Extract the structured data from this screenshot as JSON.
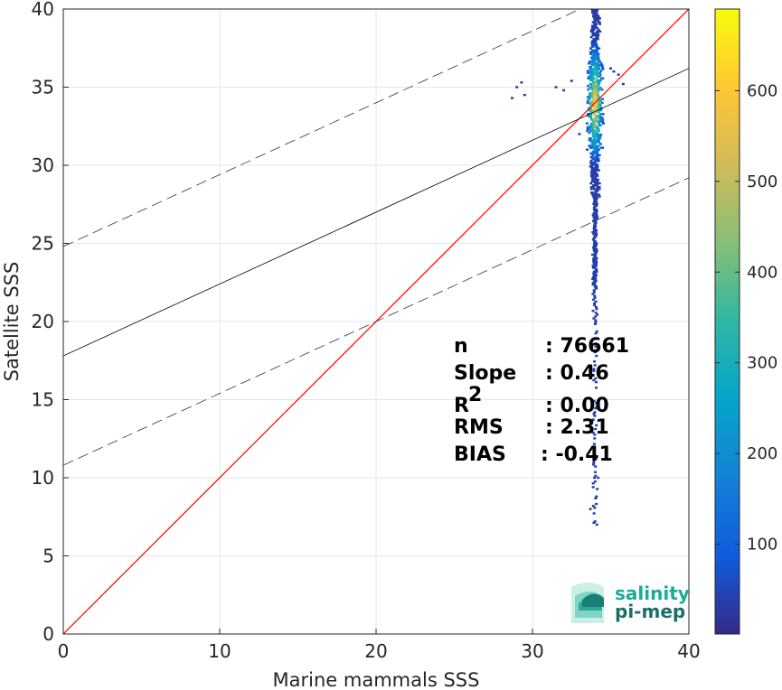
{
  "chart_data": {
    "type": "scatter",
    "subtype": "density-histogram",
    "xlabel": "Marine mammals SSS",
    "ylabel": "Satellite SSS",
    "xlim": [
      0,
      40
    ],
    "ylim": [
      0,
      40
    ],
    "xticks": [
      0,
      10,
      20,
      30,
      40
    ],
    "yticks": [
      0,
      5,
      10,
      15,
      20,
      25,
      30,
      35,
      40
    ],
    "grid": true,
    "identity_line": {
      "from": [
        0,
        0
      ],
      "to": [
        40,
        40
      ],
      "color": "#ff0000"
    },
    "regression_line": {
      "slope": 0.46,
      "intercept": 17.8,
      "color": "#000000"
    },
    "confidence_lines": [
      {
        "slope": 0.46,
        "intercept": 24.8
      },
      {
        "slope": 0.46,
        "intercept": 10.8
      }
    ],
    "density": {
      "x_center": 34.0,
      "y_min": 7.0,
      "y_max": 40.0,
      "y_peak": 34.0,
      "outliers": [
        [
          29.3,
          35.3
        ],
        [
          29.5,
          34.5
        ],
        [
          28.7,
          34.3
        ],
        [
          29.0,
          35.0
        ],
        [
          31.5,
          35.0
        ],
        [
          32.0,
          34.8
        ],
        [
          32.5,
          35.4
        ],
        [
          33.0,
          32.0
        ],
        [
          35.2,
          36.0
        ],
        [
          35.5,
          35.8
        ],
        [
          35.8,
          35.2
        ],
        [
          35.0,
          36.2
        ],
        [
          33.7,
          8.0
        ],
        [
          34.0,
          7.2
        ],
        [
          34.2,
          10.0
        ]
      ]
    },
    "colorbar": {
      "min": 1,
      "max": 690,
      "ticks": [
        100,
        200,
        300,
        400,
        500,
        600
      ],
      "colormap": "parula",
      "colors": [
        "#352a87",
        "#0f5cdd",
        "#1481d6",
        "#06a4ca",
        "#2eb7a4",
        "#87bf77",
        "#d1bb59",
        "#fec832",
        "#f9fb0e"
      ]
    }
  },
  "stats": [
    {
      "label": "n",
      "value": ": 76661"
    },
    {
      "label": "Slope",
      "value": ": 0.46"
    },
    {
      "label": "R",
      "sup": "2",
      "value": ": 0.00"
    },
    {
      "label": "RMS",
      "value": ": 2.31"
    },
    {
      "label": "BIAS",
      "value": ": -0.41"
    }
  ],
  "logo": {
    "line1": "salinity",
    "line2": "pi-mep",
    "color1": "#1aaa9a",
    "color2": "#1b6f6a"
  }
}
